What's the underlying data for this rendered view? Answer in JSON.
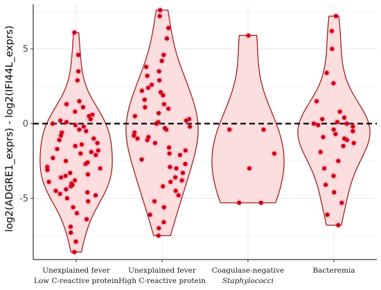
{
  "chart_data": {
    "type": "violin",
    "ylabel": "log2(ADGRE1_exprs) - log2(IFI44L_exprs)",
    "xlabel": "",
    "ylim": [
      -9.1,
      8.0
    ],
    "yticks": [
      5,
      0,
      -5
    ],
    "ytick_labels": [
      "5",
      "0",
      "-5"
    ],
    "reference_line": {
      "y": 0,
      "style": "dashed",
      "color": "#000000"
    },
    "grid": true,
    "colors": {
      "fill": "#fcdede",
      "outline": "#a01c1c",
      "point": "#cc0000",
      "glow": "#ff66cc"
    },
    "categories": [
      [
        "Unexplained fever",
        "Low C-reactive protein"
      ],
      [
        "Unexplained fever",
        "High C-reactive protein"
      ],
      [
        "Coagulase-negative",
        "Staphylococci"
      ],
      [
        "Bacteremia"
      ]
    ],
    "groups": [
      {
        "points": [
          6.1,
          4.6,
          3.5,
          2.9,
          1.5,
          1.3,
          1.1,
          0.8,
          0.6,
          0.5,
          0.3,
          0.2,
          0.1,
          0.0,
          -0.1,
          -0.2,
          -0.4,
          -0.6,
          -0.8,
          -1.0,
          -1.3,
          -1.5,
          -1.7,
          -1.9,
          -2.1,
          -2.3,
          -2.5,
          -2.7,
          -2.9,
          -3.1,
          -3.3,
          -3.5,
          -3.6,
          -3.8,
          -4.0,
          -4.2,
          -4.4,
          -4.6,
          -4.8,
          -5.0,
          -0.5,
          -1.1,
          -1.8,
          -2.6,
          -3.4,
          -4.1,
          -4.7,
          -5.2,
          -5.6,
          -6.0,
          -6.4,
          -6.9,
          -7.3,
          -7.9,
          -8.6,
          -2.0,
          -3.0,
          -3.9,
          -4.5,
          -1.4
        ]
      },
      {
        "points": [
          7.6,
          7.2,
          6.4,
          5.7,
          4.6,
          4.2,
          3.8,
          3.5,
          3.2,
          2.9,
          2.6,
          2.4,
          2.1,
          1.9,
          1.6,
          1.3,
          1.0,
          0.7,
          0.5,
          0.3,
          0.1,
          0.0,
          -0.2,
          -0.4,
          -0.6,
          -0.8,
          -1.1,
          -1.3,
          -1.6,
          -1.8,
          -2.1,
          -2.4,
          -2.7,
          -3.0,
          -3.3,
          -3.6,
          -3.9,
          -4.2,
          -4.5,
          -4.8,
          -5.2,
          -5.6,
          -6.1,
          -6.6,
          -7.0,
          -7.5,
          0.2,
          -0.3,
          -1.0,
          -2.0,
          -2.9,
          -3.8,
          1.1,
          2.2,
          -0.9
        ]
      },
      {
        "points": [
          5.9,
          -0.4,
          -0.4,
          -2.0,
          -3.0,
          -5.3,
          -5.3
        ]
      },
      {
        "points": [
          7.2,
          6.2,
          5.0,
          3.4,
          2.7,
          1.5,
          0.8,
          0.3,
          0.1,
          0.0,
          0.0,
          -0.1,
          -0.2,
          -0.4,
          -0.7,
          -0.9,
          -1.1,
          -1.3,
          -1.5,
          -1.9,
          -2.5,
          -3.0,
          -3.5,
          -4.1,
          -4.6,
          -5.3,
          -6.1,
          -6.8,
          -0.5,
          0.4,
          -1.0
        ]
      }
    ]
  }
}
